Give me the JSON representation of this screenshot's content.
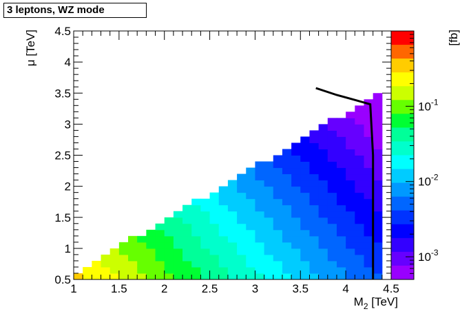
{
  "chart_data": {
    "type": "heatmap",
    "title": "3 leptons, WZ mode",
    "xlabel": "M",
    "xlabel_sub": "2",
    "xlabel_unit": " [TeV]",
    "ylabel": "μ [TeV]",
    "zlabel": "[fb]",
    "xlim": [
      1.0,
      4.5
    ],
    "ylim": [
      0.5,
      4.5
    ],
    "zlim": [
      0.0005,
      1.0
    ],
    "zscale": "log",
    "x_ticks": [
      "1",
      "1.5",
      "2",
      "2.5",
      "3",
      "3.5",
      "4",
      "4.5"
    ],
    "y_ticks": [
      "0.5",
      "1",
      "1.5",
      "2",
      "2.5",
      "3",
      "3.5",
      "4",
      "4.5"
    ],
    "z_ticks": [
      {
        "base": "10",
        "exp": "-1",
        "value": 0.1
      },
      {
        "base": "10",
        "exp": "-2",
        "value": 0.01
      },
      {
        "base": "10",
        "exp": "-3",
        "value": 0.001
      }
    ],
    "cell_size": {
      "dM2": 0.1,
      "dmu": 0.1
    },
    "region": "cells with mu below 0.5 + 0.86*(M2 - 1) + 0.1 and M2 up to 4.4",
    "contour": {
      "x": [
        3.67,
        3.9,
        4.1,
        4.27,
        4.3,
        4.3
      ],
      "y": [
        3.58,
        3.47,
        3.39,
        3.32,
        2.5,
        0.5
      ]
    },
    "grid": false,
    "colormap": [
      "#ff0000",
      "#ff6600",
      "#ffcc00",
      "#ffff00",
      "#ccff00",
      "#66ff00",
      "#00ff33",
      "#00ff99",
      "#00ffcc",
      "#00ffff",
      "#00ccff",
      "#0099ff",
      "#0066ff",
      "#0033ff",
      "#0000ff",
      "#3300ff",
      "#6600ff",
      "#9900ff"
    ]
  }
}
